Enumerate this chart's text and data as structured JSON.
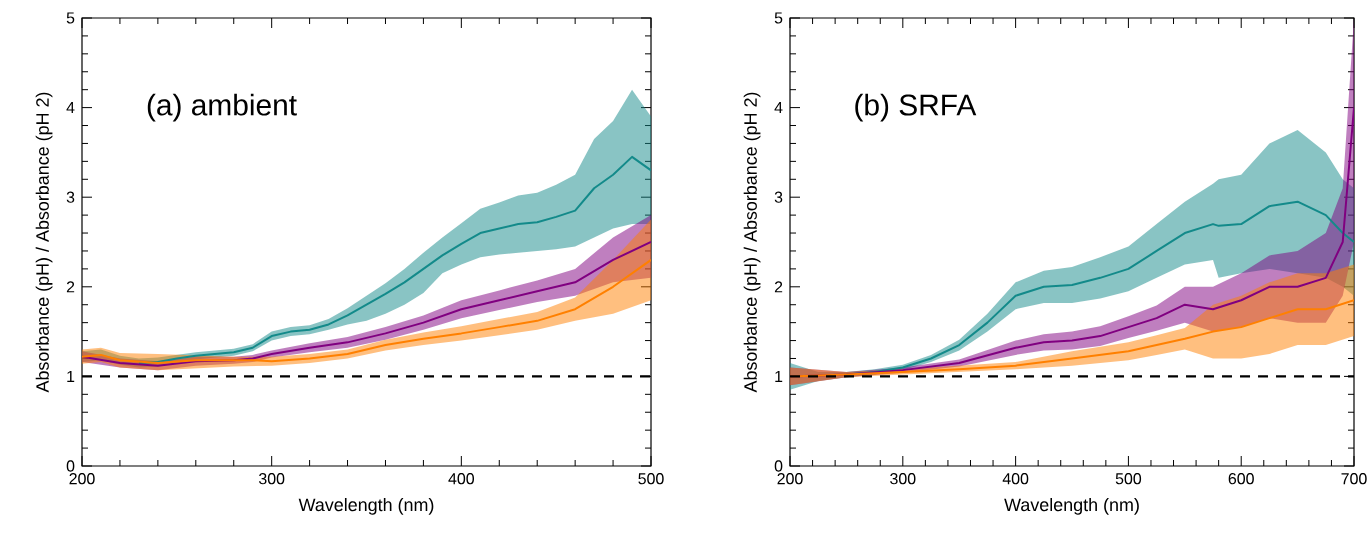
{
  "chart_data": [
    {
      "type": "line",
      "title": "(a)  ambient",
      "xlabel": "Wavelength (nm)",
      "ylabel": "Absorbance (pH) / Absorbance (pH 2)",
      "xlim": [
        200,
        500
      ],
      "ylim": [
        0,
        5
      ],
      "xticks": [
        200,
        300,
        400,
        500
      ],
      "yticks": [
        0,
        1,
        2,
        3,
        4,
        5
      ],
      "ref_lines": [
        {
          "axis": "y",
          "value": 1,
          "color": "#000000",
          "line_style": "dashed"
        }
      ],
      "series": [
        {
          "color": "#138a8a",
          "x": [
            200,
            210,
            220,
            230,
            240,
            250,
            260,
            270,
            280,
            290,
            300,
            310,
            320,
            330,
            340,
            350,
            360,
            370,
            380,
            390,
            400,
            410,
            420,
            430,
            440,
            450,
            460,
            470,
            480,
            490,
            500
          ],
          "values": [
            null,
            null,
            null,
            1.15,
            1.16,
            1.2,
            1.23,
            1.25,
            1.27,
            1.32,
            1.45,
            1.5,
            1.52,
            1.58,
            1.68,
            1.8,
            1.92,
            2.05,
            2.2,
            2.35,
            2.48,
            2.6,
            2.65,
            2.7,
            2.72,
            2.78,
            2.85,
            3.1,
            3.25,
            3.45,
            3.3
          ],
          "lower": [
            1.16,
            1.18,
            1.13,
            1.1,
            1.11,
            null,
            1.19,
            1.21,
            1.23,
            1.28,
            1.4,
            1.45,
            1.47,
            1.52,
            1.58,
            1.62,
            1.7,
            1.8,
            1.93,
            2.15,
            2.25,
            2.33,
            2.36,
            2.38,
            2.4,
            2.42,
            2.45,
            2.55,
            2.65,
            2.7,
            2.7
          ],
          "upper": [
            1.28,
            1.3,
            1.23,
            1.2,
            1.21,
            null,
            1.27,
            1.29,
            1.31,
            1.36,
            1.5,
            1.55,
            1.57,
            1.64,
            1.76,
            1.9,
            2.04,
            2.2,
            2.38,
            2.55,
            2.71,
            2.87,
            2.94,
            3.02,
            3.05,
            3.14,
            3.25,
            3.65,
            3.85,
            4.2,
            3.9
          ]
        },
        {
          "color": "#800080",
          "x": [
            200,
            220,
            240,
            260,
            280,
            290,
            300,
            320,
            340,
            360,
            380,
            400,
            420,
            440,
            460,
            480,
            500
          ],
          "values": [
            1.22,
            1.15,
            1.12,
            1.17,
            1.18,
            1.2,
            1.25,
            1.32,
            1.38,
            1.48,
            1.6,
            1.75,
            1.85,
            1.95,
            2.05,
            2.3,
            2.5
          ],
          "lower": [
            1.16,
            1.1,
            1.07,
            1.12,
            1.14,
            1.16,
            1.21,
            1.27,
            1.32,
            1.41,
            1.52,
            1.65,
            1.74,
            1.83,
            1.9,
            2.05,
            2.1
          ],
          "upper": [
            1.28,
            1.2,
            1.17,
            1.22,
            1.22,
            1.24,
            1.29,
            1.37,
            1.44,
            1.55,
            1.68,
            1.85,
            1.96,
            2.07,
            2.2,
            2.55,
            2.8
          ]
        },
        {
          "color": "#ff8000",
          "x": [
            200,
            210,
            220,
            240,
            260,
            280,
            290,
            300,
            320,
            340,
            360,
            380,
            400,
            420,
            440,
            460,
            480,
            500
          ],
          "values": [
            1.22,
            1.24,
            1.18,
            1.15,
            1.18,
            1.18,
            1.18,
            1.17,
            1.2,
            1.25,
            1.35,
            1.42,
            1.48,
            1.55,
            1.62,
            1.75,
            2.0,
            2.3
          ],
          "lower": [
            1.14,
            1.16,
            1.1,
            1.07,
            null,
            1.11,
            null,
            1.12,
            1.15,
            1.2,
            1.29,
            1.35,
            1.4,
            1.46,
            1.52,
            1.62,
            1.7,
            1.85
          ],
          "upper": [
            1.3,
            1.32,
            1.26,
            1.25,
            null,
            1.22,
            null,
            1.22,
            1.25,
            1.3,
            1.41,
            1.49,
            1.56,
            1.64,
            1.72,
            1.88,
            2.3,
            2.75
          ]
        }
      ]
    },
    {
      "type": "line",
      "title": "(b)  SRFA",
      "xlabel": "Wavelength (nm)",
      "ylabel": "Absorbance (pH) / Absorbance (pH 2)",
      "xlim": [
        200,
        700
      ],
      "ylim": [
        0,
        5
      ],
      "xticks": [
        200,
        300,
        400,
        500,
        600,
        700
      ],
      "yticks": [
        0,
        1,
        2,
        3,
        4,
        5
      ],
      "ref_lines": [
        {
          "axis": "y",
          "value": 1,
          "color": "#000000",
          "line_style": "dashed"
        }
      ],
      "series": [
        {
          "color": "#138a8a",
          "x": [
            200,
            225,
            250,
            275,
            300,
            325,
            350,
            375,
            400,
            425,
            450,
            475,
            500,
            525,
            550,
            575,
            580,
            600,
            625,
            650,
            675,
            690,
            700
          ],
          "values": [
            null,
            null,
            1.02,
            1.05,
            1.1,
            1.2,
            1.35,
            1.6,
            1.9,
            2.0,
            2.02,
            2.1,
            2.2,
            2.4,
            2.6,
            2.7,
            2.68,
            2.7,
            2.9,
            2.95,
            2.8,
            2.6,
            2.5
          ],
          "lower": [
            0.85,
            0.95,
            0.99,
            1.02,
            1.07,
            1.16,
            1.29,
            1.5,
            1.75,
            1.82,
            1.82,
            1.87,
            1.95,
            2.1,
            2.25,
            2.3,
            2.1,
            2.15,
            2.2,
            2.15,
            2.1,
            2.0,
            1.9
          ],
          "upper": [
            1.15,
            1.05,
            1.05,
            1.08,
            1.13,
            1.24,
            1.41,
            1.7,
            2.05,
            2.18,
            2.22,
            2.33,
            2.45,
            2.7,
            2.95,
            3.15,
            3.2,
            3.25,
            3.6,
            3.75,
            3.5,
            3.2,
            3.1
          ]
        },
        {
          "color": "#800080",
          "x": [
            200,
            250,
            300,
            350,
            400,
            425,
            450,
            475,
            500,
            525,
            550,
            575,
            600,
            625,
            650,
            675,
            690,
            700
          ],
          "values": [
            1.0,
            1.02,
            1.07,
            1.15,
            1.32,
            1.38,
            1.4,
            1.45,
            1.55,
            1.65,
            1.8,
            1.75,
            1.85,
            2.0,
            2.0,
            2.1,
            2.5,
            4.0
          ],
          "lower": [
            0.9,
            0.99,
            1.04,
            1.11,
            1.24,
            1.29,
            1.3,
            1.34,
            1.43,
            1.51,
            1.6,
            1.5,
            1.55,
            1.65,
            1.6,
            1.6,
            1.9,
            2.5
          ],
          "upper": [
            1.1,
            1.05,
            1.1,
            1.19,
            1.4,
            1.47,
            1.5,
            1.56,
            1.67,
            1.79,
            2.0,
            2.0,
            2.15,
            2.35,
            2.4,
            2.6,
            3.1,
            5.0
          ]
        },
        {
          "color": "#ff8000",
          "x": [
            200,
            250,
            300,
            350,
            400,
            450,
            500,
            525,
            550,
            575,
            600,
            625,
            650,
            675,
            700
          ],
          "values": [
            1.0,
            1.02,
            1.05,
            1.08,
            1.12,
            1.2,
            1.28,
            1.35,
            1.42,
            1.5,
            1.55,
            1.65,
            1.75,
            1.75,
            1.85
          ],
          "lower": [
            0.9,
            0.99,
            1.02,
            null,
            1.08,
            1.12,
            1.18,
            1.24,
            1.3,
            1.2,
            1.2,
            1.25,
            1.35,
            1.35,
            1.45
          ],
          "upper": [
            1.1,
            1.05,
            1.08,
            null,
            1.16,
            1.28,
            1.38,
            1.46,
            1.54,
            1.8,
            1.9,
            2.05,
            2.15,
            2.15,
            2.25
          ]
        }
      ]
    }
  ]
}
